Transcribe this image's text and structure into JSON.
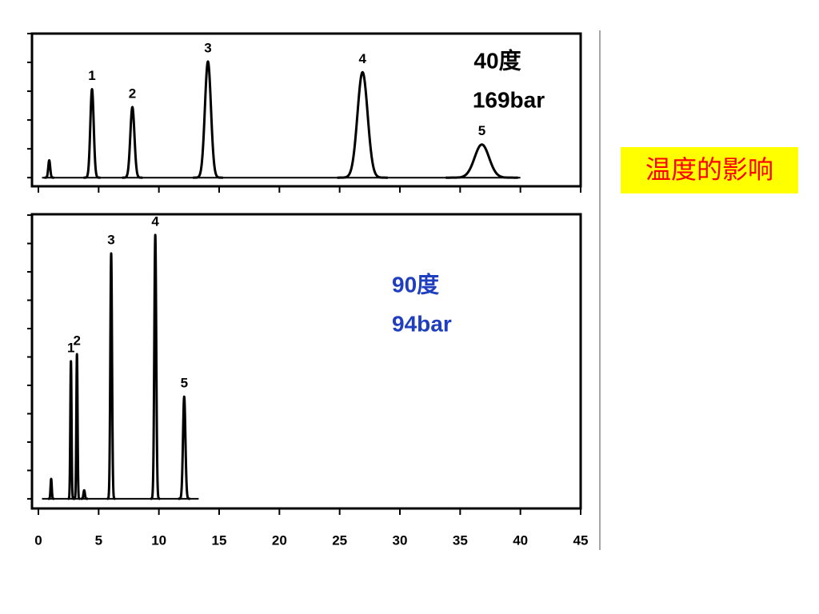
{
  "chart_data": [
    {
      "type": "chromatogram",
      "annotations": [
        "40度",
        "169bar"
      ],
      "annotation_color": "#000000",
      "x": [
        0.9,
        4.45,
        7.8,
        14.07,
        26.9,
        36.8
      ],
      "values": [
        0.6,
        3.07,
        2.45,
        4.03,
        3.66,
        1.15
      ],
      "peak_widths": [
        0.08,
        0.14,
        0.17,
        0.25,
        0.42,
        0.6
      ],
      "peak_labels": [
        null,
        "1",
        "2",
        "3",
        "4",
        "5"
      ],
      "trace_range": [
        0.3,
        40
      ],
      "color": "#000000",
      "xlim": [
        0,
        45
      ],
      "xticks": [
        0,
        5,
        10,
        15,
        20,
        25,
        30,
        35,
        40,
        45
      ],
      "show_xtick_labels": false,
      "ylim": [
        -0.3,
        5
      ],
      "yticks": [
        0,
        1,
        2,
        3,
        4,
        5
      ]
    },
    {
      "type": "chromatogram",
      "annotations": [
        "90度",
        "94bar"
      ],
      "annotation_color": "#1f3fbf",
      "x": [
        1.06,
        2.7,
        3.2,
        3.8,
        6.04,
        9.7,
        12.1
      ],
      "values": [
        0.7,
        4.85,
        5.1,
        0.3,
        8.65,
        9.3,
        3.6
      ],
      "peak_widths": [
        0.05,
        0.05,
        0.05,
        0.06,
        0.07,
        0.08,
        0.1
      ],
      "peak_labels": [
        null,
        "1",
        "2",
        null,
        "3",
        "4",
        "5"
      ],
      "trace_range": [
        0.3,
        13.3
      ],
      "color": "#000000",
      "xlim": [
        0,
        45
      ],
      "xticks": [
        0,
        5,
        10,
        15,
        20,
        25,
        30,
        35,
        40,
        45
      ],
      "show_xtick_labels": true,
      "ylim": [
        -0.34,
        10.03
      ],
      "yticks": [
        0,
        1,
        2,
        3,
        4,
        5,
        6,
        7,
        8,
        9,
        10
      ]
    }
  ],
  "side_label": "温度的影响"
}
